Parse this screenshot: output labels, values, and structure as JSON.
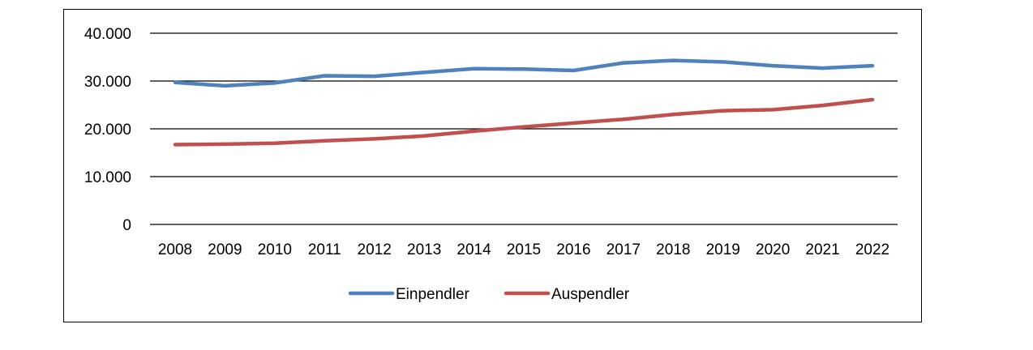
{
  "chart_data": {
    "type": "line",
    "title": "",
    "xlabel": "",
    "ylabel": "",
    "categories": [
      "2008",
      "2009",
      "2010",
      "2011",
      "2012",
      "2013",
      "2014",
      "2015",
      "2016",
      "2017",
      "2018",
      "2019",
      "2020",
      "2021",
      "2022"
    ],
    "ylim": [
      0,
      40000
    ],
    "y_ticks": [
      0,
      10000,
      20000,
      30000,
      40000
    ],
    "y_tick_labels": [
      "0",
      "10.000",
      "20.000",
      "30.000",
      "40.000"
    ],
    "grid": true,
    "legend": "bottom",
    "series": [
      {
        "name": "Einpendler",
        "color": "#4f81bd",
        "values": [
          29700,
          29000,
          29600,
          31100,
          31000,
          31800,
          32600,
          32500,
          32200,
          33800,
          34300,
          34000,
          33200,
          32700,
          33200
        ]
      },
      {
        "name": "Auspendler",
        "color": "#c0504d",
        "values": [
          16700,
          16800,
          17000,
          17500,
          17900,
          18500,
          19500,
          20400,
          21200,
          22000,
          23000,
          23800,
          24000,
          24900,
          26100
        ]
      }
    ]
  }
}
